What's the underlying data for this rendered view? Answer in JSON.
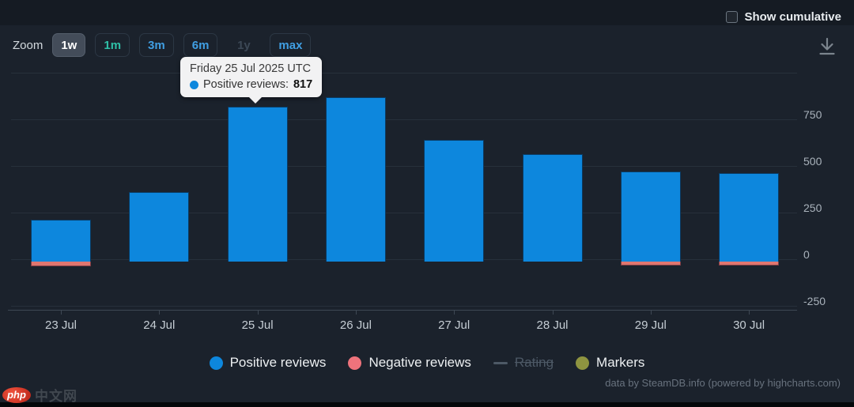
{
  "header": {
    "show_cumulative_label": "Show cumulative",
    "checkbox_checked": false
  },
  "toolbar": {
    "zoom_label": "Zoom",
    "buttons": [
      {
        "label": "1w",
        "state": "selected",
        "color": "#ffffff"
      },
      {
        "label": "1m",
        "state": "normal",
        "color": "#2fbfa7"
      },
      {
        "label": "3m",
        "state": "normal",
        "color": "#409fe3"
      },
      {
        "label": "6m",
        "state": "normal",
        "color": "#409fe3"
      },
      {
        "label": "1y",
        "state": "disabled",
        "color": "#3c4856"
      },
      {
        "label": "max",
        "state": "normal",
        "color": "#409fe3"
      }
    ]
  },
  "tooltip": {
    "title": "Friday 25 Jul 2025 UTC",
    "series_label": "Positive reviews:",
    "value": "817",
    "dot_color": "#0d87dd",
    "category_index": 2
  },
  "chart_data": {
    "type": "bar",
    "categories": [
      "23 Jul",
      "24 Jul",
      "25 Jul",
      "26 Jul",
      "27 Jul",
      "28 Jul",
      "29 Jul",
      "30 Jul"
    ],
    "series": [
      {
        "name": "Positive reviews",
        "color": "#0d87dd",
        "values": [
          210,
          360,
          817,
          870,
          640,
          565,
          470,
          460
        ]
      },
      {
        "name": "Negative reviews",
        "color": "#e0766f",
        "values": [
          -25,
          0,
          0,
          0,
          0,
          0,
          -20,
          -20
        ]
      }
    ],
    "title": "",
    "xlabel": "",
    "ylabel": "",
    "ylim": [
      -270,
      1030
    ],
    "yticks": [
      -250,
      0,
      250,
      500,
      750
    ],
    "gridlines": [
      -250,
      0,
      250,
      500,
      750,
      1000
    ],
    "grid": true,
    "legend_position": "bottom",
    "legend": [
      {
        "label": "Positive reviews",
        "marker": "circle",
        "color": "#0d87dd",
        "enabled": true
      },
      {
        "label": "Negative reviews",
        "marker": "circle",
        "color": "#ee737c",
        "enabled": true
      },
      {
        "label": "Rating",
        "marker": "line",
        "color": "#4d5966",
        "enabled": false
      },
      {
        "label": "Markers",
        "marker": "circle",
        "color": "#8e9440",
        "enabled": true
      }
    ]
  },
  "credits": {
    "text": "data by SteamDB.info (powered by highcharts.com)"
  },
  "watermark": {
    "logo_text": "php",
    "site_text": "中文网"
  }
}
